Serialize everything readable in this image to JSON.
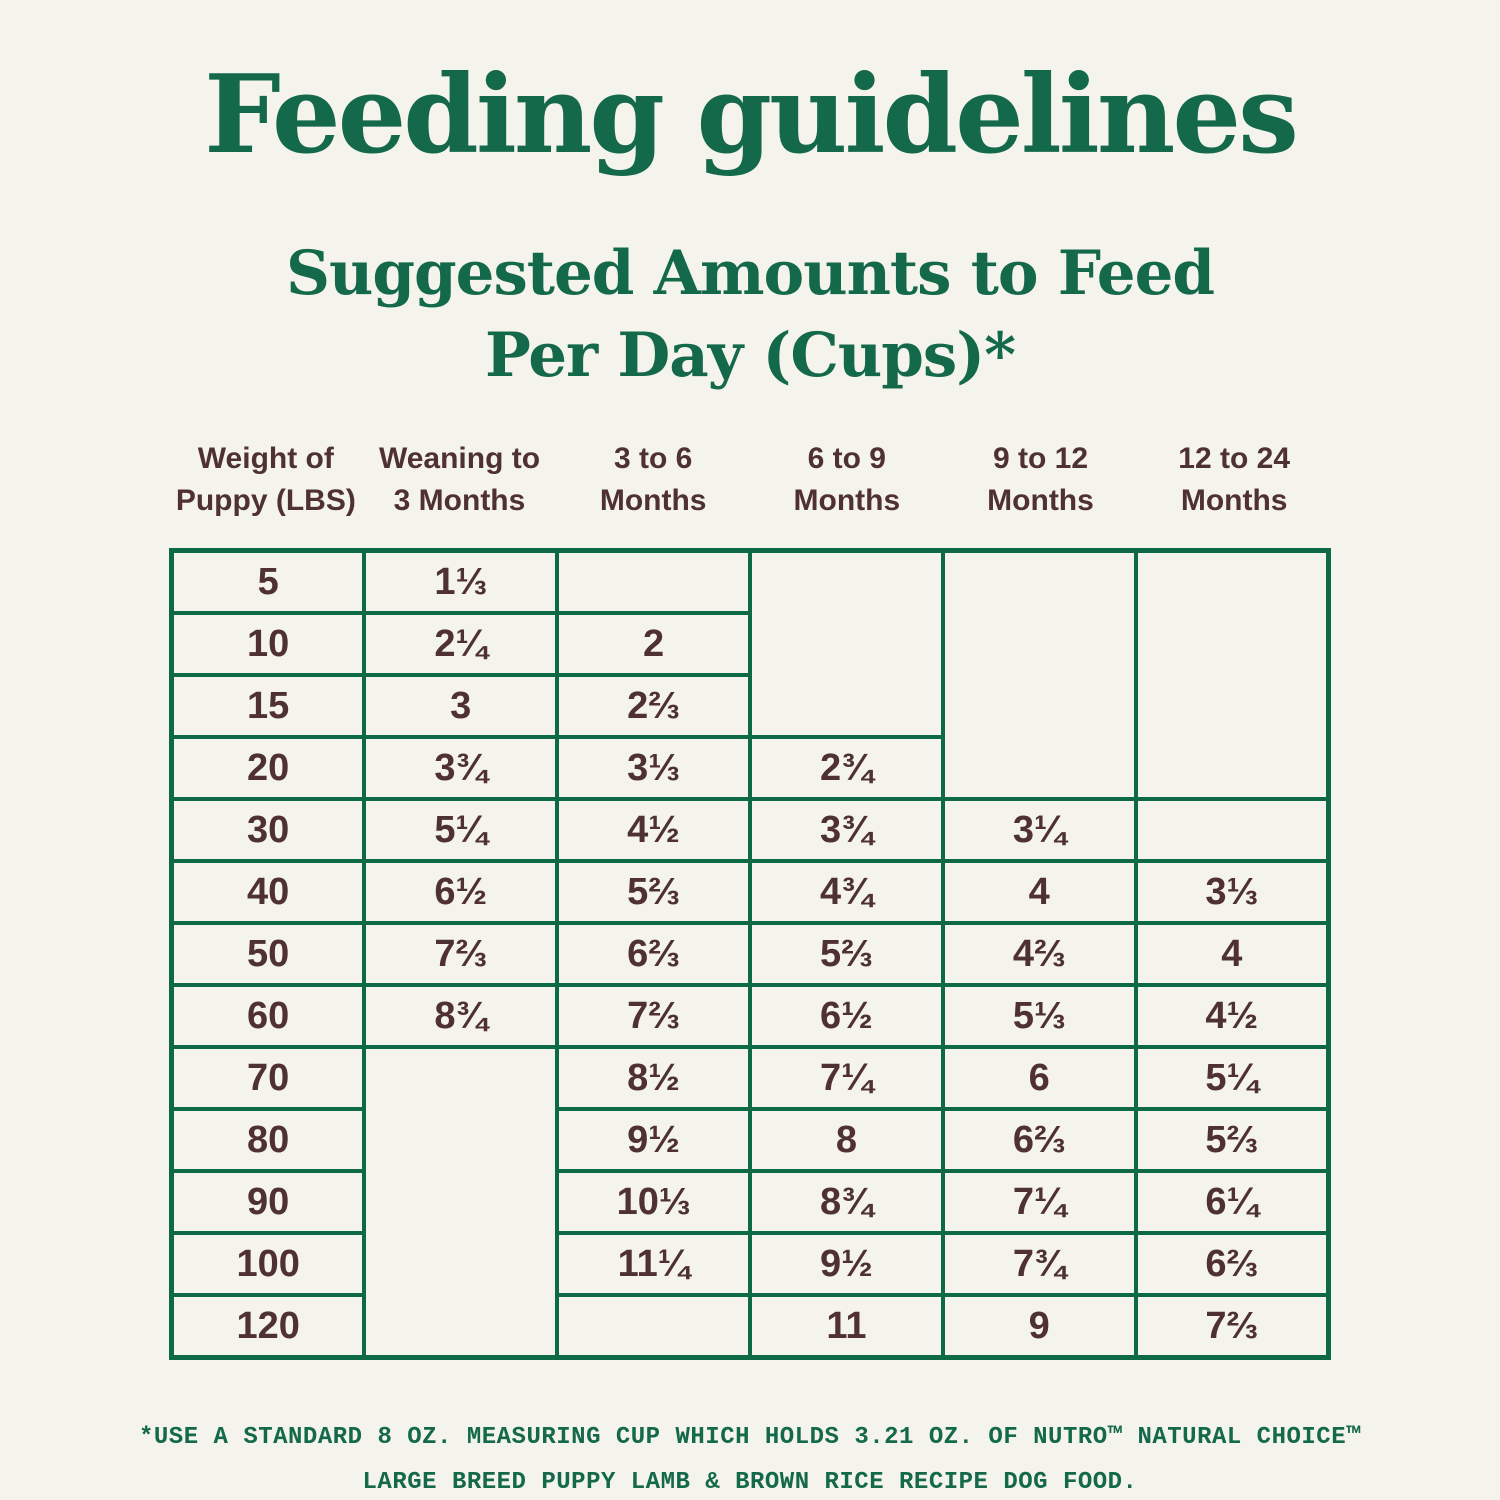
{
  "title": "Feeding guidelines",
  "subtitle": {
    "line1": "Suggested Amounts to Feed",
    "line2": "Per Day (Cups)*"
  },
  "table": {
    "column_headers": [
      {
        "line1": "Weight of",
        "line2": "Puppy (LBS)"
      },
      {
        "line1": "Weaning to",
        "line2": "3 Months"
      },
      {
        "line1": "3 to 6",
        "line2": "Months"
      },
      {
        "line1": "6 to 9",
        "line2": "Months"
      },
      {
        "line1": "9 to 12",
        "line2": "Months"
      },
      {
        "line1": "12 to 24",
        "line2": "Months"
      }
    ],
    "rows": [
      [
        "5",
        "1⅓",
        "",
        "",
        "",
        ""
      ],
      [
        "10",
        "2¼",
        "2",
        "",
        "",
        ""
      ],
      [
        "15",
        "3",
        "2⅔",
        "",
        "",
        ""
      ],
      [
        "20",
        "3¾",
        "3⅓",
        "2¾",
        "",
        ""
      ],
      [
        "30",
        "5¼",
        "4½",
        "3¾",
        "3¼",
        ""
      ],
      [
        "40",
        "6½",
        "5⅔",
        "4¾",
        "4",
        "3⅓"
      ],
      [
        "50",
        "7⅔",
        "6⅔",
        "5⅔",
        "4⅔",
        "4"
      ],
      [
        "60",
        "8¾",
        "7⅔",
        "6½",
        "5⅓",
        "4½"
      ],
      [
        "70",
        "",
        "8½",
        "7¼",
        "6",
        "5¼"
      ],
      [
        "80",
        "",
        "9½",
        "8",
        "6⅔",
        "5⅔"
      ],
      [
        "90",
        "",
        "10⅓",
        "8¾",
        "7¼",
        "6¼"
      ],
      [
        "100",
        "",
        "11¼",
        "9½",
        "7¾",
        "6⅔"
      ],
      [
        "120",
        "",
        "",
        "11",
        "9",
        "7⅔"
      ]
    ]
  },
  "footnote": {
    "line1": "*USE A STANDARD 8 OZ. MEASURING CUP WHICH HOLDS 3.21 OZ. OF NUTRO™ NATURAL CHOICE™",
    "line2": "LARGE BREED PUPPY LAMB & BROWN RICE RECIPE DOG FOOD."
  },
  "colors": {
    "background": "#F5F4EC",
    "heading_green": "#15694B",
    "table_border_green": "#0E6946",
    "value_brown": "#4F3134"
  }
}
